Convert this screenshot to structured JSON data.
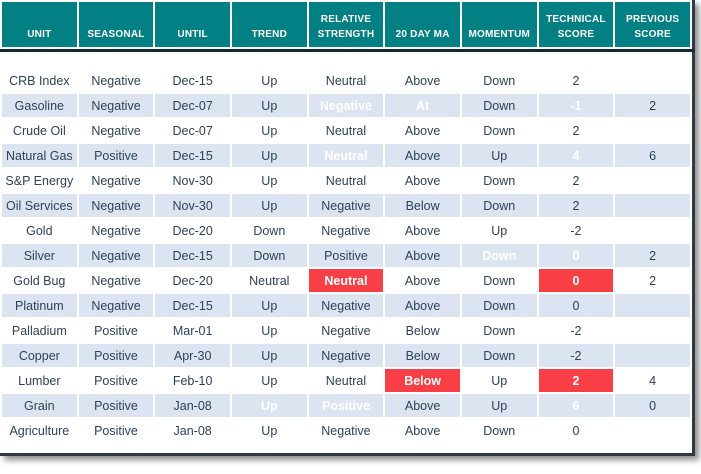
{
  "colors": {
    "header_bg": "#028083",
    "header_text": "#FFFFFF",
    "separator_line": "#142A3B",
    "row_stripe": "#DBE4F0",
    "highlight_red": "#F93F46",
    "highlight_green": "#92D050",
    "body_text": "#2E4256"
  },
  "table": {
    "columns": [
      {
        "key": "unit",
        "label": "UNIT"
      },
      {
        "key": "seasonal",
        "label": "SEASONAL"
      },
      {
        "key": "until",
        "label": "UNTIL"
      },
      {
        "key": "trend",
        "label": "TREND"
      },
      {
        "key": "relative_strength",
        "label": "RELATIVE STRENGTH"
      },
      {
        "key": "ma_20",
        "label": "20 DAY MA"
      },
      {
        "key": "momentum",
        "label": "MOMENTUM"
      },
      {
        "key": "technical_score",
        "label": "TECHNICAL SCORE"
      },
      {
        "key": "previous_score",
        "label": "PREVIOUS SCORE"
      }
    ],
    "rows": [
      {
        "unit": "CRB Index",
        "seasonal": "Negative",
        "until": "Dec-15",
        "trend": "Up",
        "relative_strength": "Neutral",
        "ma_20": "Above",
        "momentum": "Down",
        "technical_score": "2",
        "previous_score": "",
        "highlights": {}
      },
      {
        "unit": "Gasoline",
        "seasonal": "Negative",
        "until": "Dec-07",
        "trend": "Up",
        "relative_strength": "Negative",
        "ma_20": "At",
        "momentum": "Down",
        "technical_score": "-1",
        "previous_score": "2",
        "highlights": {
          "relative_strength": "red",
          "ma_20": "red",
          "technical_score": "red"
        }
      },
      {
        "unit": "Crude Oil",
        "seasonal": "Negative",
        "until": "Dec-07",
        "trend": "Up",
        "relative_strength": "Neutral",
        "ma_20": "Above",
        "momentum": "Down",
        "technical_score": "2",
        "previous_score": "",
        "highlights": {}
      },
      {
        "unit": "Natural Gas",
        "seasonal": "Positive",
        "until": "Dec-15",
        "trend": "Up",
        "relative_strength": "Neutral",
        "ma_20": "Above",
        "momentum": "Up",
        "technical_score": "4",
        "previous_score": "6",
        "highlights": {
          "relative_strength": "red",
          "technical_score": "red"
        }
      },
      {
        "unit": "S&P Energy",
        "seasonal": "Negative",
        "until": "Nov-30",
        "trend": "Up",
        "relative_strength": "Neutral",
        "ma_20": "Above",
        "momentum": "Down",
        "technical_score": "2",
        "previous_score": "",
        "highlights": {}
      },
      {
        "unit": "Oil Services",
        "seasonal": "Negative",
        "until": "Nov-30",
        "trend": "Up",
        "relative_strength": "Negative",
        "ma_20": "Below",
        "momentum": "Down",
        "technical_score": "2",
        "previous_score": "",
        "highlights": {}
      },
      {
        "unit": "Gold",
        "seasonal": "Negative",
        "until": "Dec-20",
        "trend": "Down",
        "relative_strength": "Negative",
        "ma_20": "Above",
        "momentum": "Up",
        "technical_score": "-2",
        "previous_score": "",
        "highlights": {}
      },
      {
        "unit": "Silver",
        "seasonal": "Negative",
        "until": "Dec-15",
        "trend": "Down",
        "relative_strength": "Positive",
        "ma_20": "Above",
        "momentum": "Down",
        "technical_score": "0",
        "previous_score": "2",
        "highlights": {
          "momentum": "red",
          "technical_score": "red"
        }
      },
      {
        "unit": "Gold Bug",
        "seasonal": "Negative",
        "until": "Dec-20",
        "trend": "Neutral",
        "relative_strength": "Neutral",
        "ma_20": "Above",
        "momentum": "Down",
        "technical_score": "0",
        "previous_score": "2",
        "highlights": {
          "relative_strength": "red",
          "technical_score": "red"
        }
      },
      {
        "unit": "Platinum",
        "seasonal": "Negative",
        "until": "Dec-15",
        "trend": "Up",
        "relative_strength": "Negative",
        "ma_20": "Above",
        "momentum": "Down",
        "technical_score": "0",
        "previous_score": "",
        "highlights": {}
      },
      {
        "unit": "Palladium",
        "seasonal": "Positive",
        "until": "Mar-01",
        "trend": "Up",
        "relative_strength": "Negative",
        "ma_20": "Below",
        "momentum": "Down",
        "technical_score": "-2",
        "previous_score": "",
        "highlights": {}
      },
      {
        "unit": "Copper",
        "seasonal": "Positive",
        "until": "Apr-30",
        "trend": "Up",
        "relative_strength": "Negative",
        "ma_20": "Below",
        "momentum": "Down",
        "technical_score": "-2",
        "previous_score": "",
        "highlights": {}
      },
      {
        "unit": "Lumber",
        "seasonal": "Positive",
        "until": "Feb-10",
        "trend": "Up",
        "relative_strength": "Neutral",
        "ma_20": "Below",
        "momentum": "Up",
        "technical_score": "2",
        "previous_score": "4",
        "highlights": {
          "ma_20": "red",
          "technical_score": "red"
        }
      },
      {
        "unit": "Grain",
        "seasonal": "Positive",
        "until": "Jan-08",
        "trend": "Up",
        "relative_strength": "Positive",
        "ma_20": "Above",
        "momentum": "Up",
        "technical_score": "6",
        "previous_score": "0",
        "highlights": {
          "trend": "green",
          "relative_strength": "green",
          "technical_score": "green"
        }
      },
      {
        "unit": "Agriculture",
        "seasonal": "Positive",
        "until": "Jan-08",
        "trend": "Up",
        "relative_strength": "Negative",
        "ma_20": "Above",
        "momentum": "Down",
        "technical_score": "0",
        "previous_score": "",
        "highlights": {}
      }
    ]
  }
}
